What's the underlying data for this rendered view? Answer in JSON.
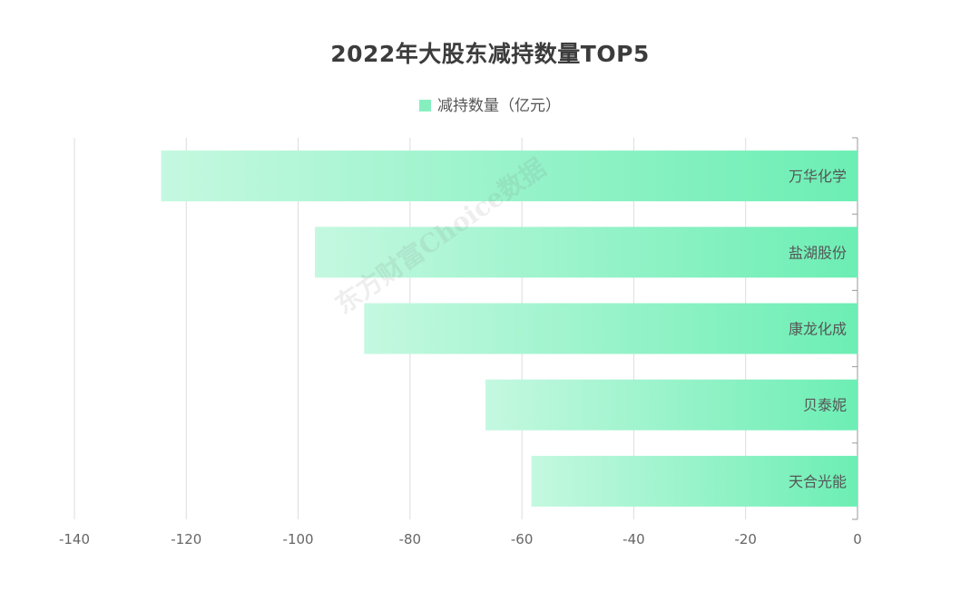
{
  "chart_data": {
    "type": "bar",
    "orientation": "horizontal",
    "title": "2022年大股东减持数量TOP5",
    "categories": [
      "万华化学",
      "盐湖股份",
      "康龙化成",
      "贝泰妮",
      "天合光能"
    ],
    "series": [
      {
        "name": "减持数量（亿元）",
        "values": [
          -124.5,
          -97,
          -88.2,
          -66.5,
          -58.3
        ]
      }
    ],
    "xlim": [
      -140,
      0
    ],
    "xticks": [
      "-140",
      "-120",
      "-100",
      "-80",
      "-60",
      "-40",
      "-20",
      "0"
    ],
    "grid": "vertical",
    "legend_position": "top-center",
    "colors": {
      "bar_light": "#c4f8e0",
      "bar_dark": "#6ceeb4",
      "grid": "#dddddd",
      "axis": "#999999"
    }
  },
  "watermark": "东方财富Choice数据"
}
